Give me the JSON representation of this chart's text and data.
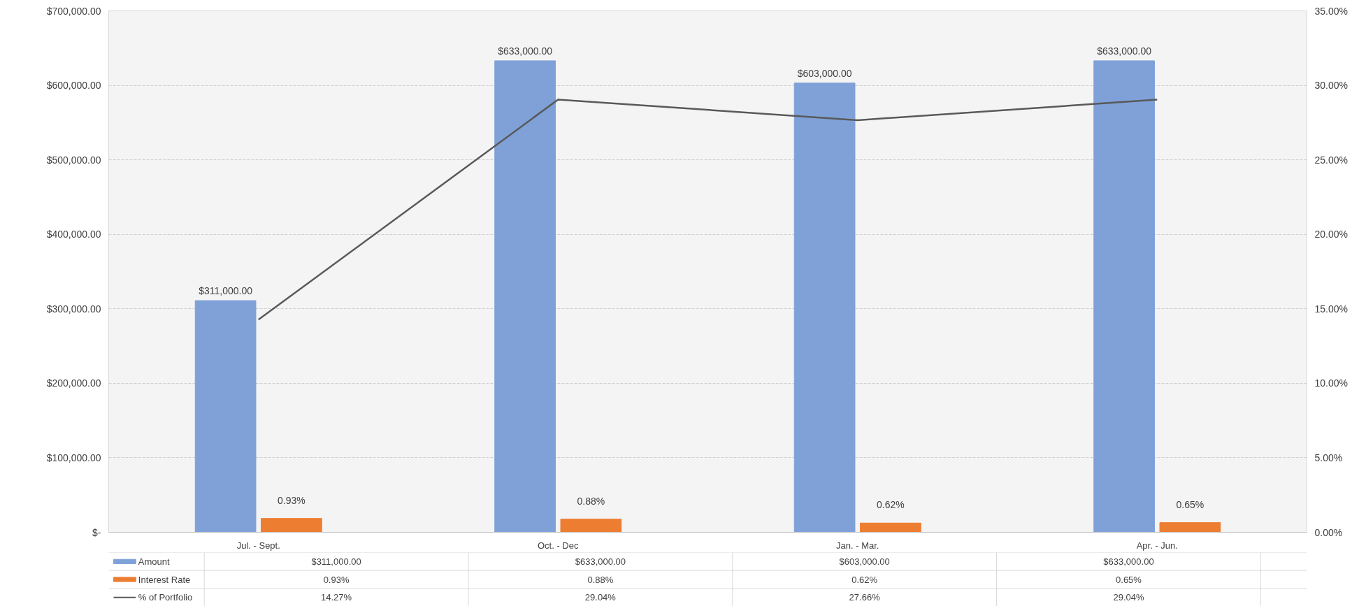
{
  "chart_data": {
    "type": "bar",
    "categories": [
      "Jul. - Sept.",
      "Oct. - Dec",
      "Jan. - Mar.",
      "Apr. - Jun."
    ],
    "series": [
      {
        "name": "Amount",
        "color": "#7fa1d8",
        "values": [
          311000,
          633000,
          603000,
          633000
        ],
        "value_labels": [
          "$311,000.00",
          "$633,000.00",
          "$603,000.00",
          "$633,000.00"
        ]
      },
      {
        "name": "Interest Rate",
        "type": "bar",
        "axis": "y2",
        "color": "#ed7d31",
        "values": [
          0.93,
          0.88,
          0.62,
          0.65
        ],
        "value_labels": [
          "0.93%",
          "0.88%",
          "0.62%",
          "0.65%"
        ]
      },
      {
        "name": "% of Portfolio",
        "type": "line",
        "axis": "y2",
        "color": "#595959",
        "values": [
          14.27,
          29.04,
          27.66,
          29.04
        ],
        "value_labels": [
          "14.27%",
          "29.04%",
          "27.66%",
          "29.04%"
        ]
      }
    ],
    "ylim": [
      0,
      700000
    ],
    "yticks": [
      {
        "value": 0,
        "label": "$-"
      },
      {
        "value": 100000,
        "label": "$100,000.00"
      },
      {
        "value": 200000,
        "label": "$200,000.00"
      },
      {
        "value": 300000,
        "label": "$300,000.00"
      },
      {
        "value": 400000,
        "label": "$400,000.00"
      },
      {
        "value": 500000,
        "label": "$500,000.00"
      },
      {
        "value": 600000,
        "label": "$600,000.00"
      },
      {
        "value": 700000,
        "label": "$700,000.00"
      }
    ],
    "y2lim": [
      0,
      35
    ],
    "y2ticks": [
      {
        "value": 0,
        "label": "0.00%"
      },
      {
        "value": 5,
        "label": "5.00%"
      },
      {
        "value": 10,
        "label": "10.00%"
      },
      {
        "value": 15,
        "label": "15.00%"
      },
      {
        "value": 20,
        "label": "20.00%"
      },
      {
        "value": 25,
        "label": "25.00%"
      },
      {
        "value": 30,
        "label": "30.00%"
      },
      {
        "value": 35,
        "label": "35.00%"
      }
    ],
    "grid": "y",
    "legend": "bottom",
    "marker": "none",
    "line_style": "solid"
  }
}
